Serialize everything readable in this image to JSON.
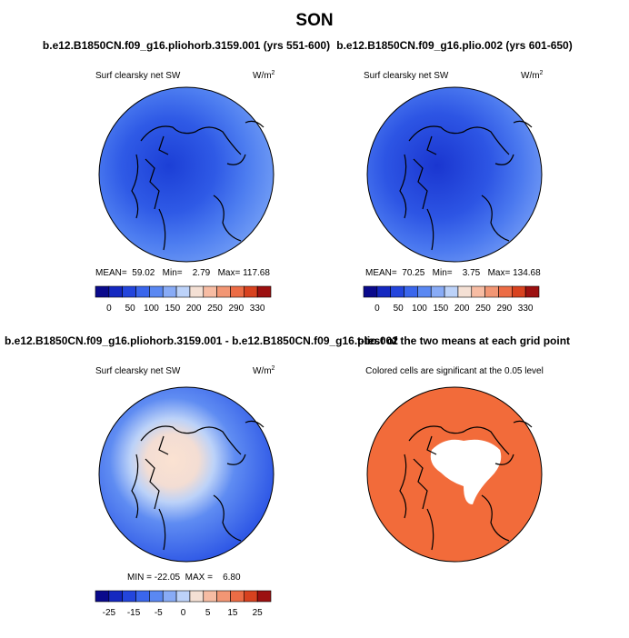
{
  "title": "SON",
  "panels": [
    {
      "title": "b.e12.B1850CN.f09_g16.pliohorb.3159.001 (yrs 551-600)",
      "subtitle": "Surf clearsky net SW",
      "unit": "W/m",
      "unit_exp": "2",
      "stats": [
        "MEAN=",
        "59.02",
        "Min=",
        "2.79",
        "Max=",
        "117.68"
      ],
      "colorbar": [
        "0",
        "50",
        "100",
        "150",
        "200",
        "250",
        "290",
        "330"
      ]
    },
    {
      "title": "b.e12.B1850CN.f09_g16.plio.002 (yrs 601-650)",
      "subtitle": "Surf clearsky net SW",
      "unit": "W/m",
      "unit_exp": "2",
      "stats": [
        "MEAN=",
        "70.25",
        "Min=",
        "3.75",
        "Max=",
        "134.68"
      ],
      "colorbar": [
        "0",
        "50",
        "100",
        "150",
        "200",
        "250",
        "290",
        "330"
      ]
    },
    {
      "title": "b.e12.B1850CN.f09_g16.pliohorb.3159.001 - b.e12.B1850CN.f09_g16.plio.002",
      "subtitle": "Surf clearsky net SW",
      "unit": "W/m",
      "unit_exp": "2",
      "stats": [
        "MIN =",
        "-22.05",
        "MAX =",
        "6.80"
      ],
      "colorbar": [
        "-25",
        "-15",
        "-5",
        "0",
        "5",
        "15",
        "25"
      ]
    },
    {
      "title": "t-test of the two means at each grid point",
      "subtitle": "Colored cells are significant at the 0.05 level"
    }
  ]
}
